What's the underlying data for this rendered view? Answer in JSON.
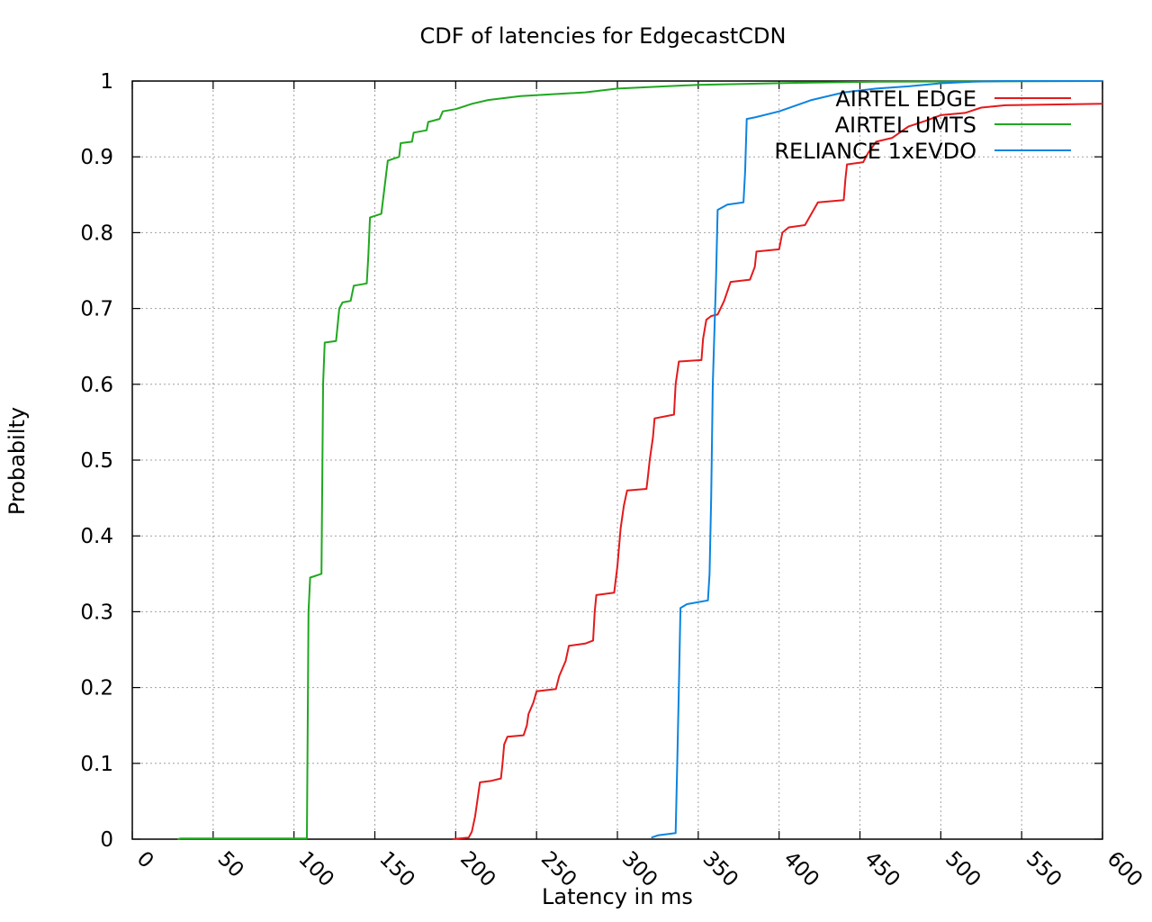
{
  "chart_data": {
    "type": "line",
    "title": "CDF of latencies for EdgecastCDN",
    "xlabel": "Latency in ms",
    "ylabel": "Probabilty",
    "xlim": [
      0,
      600
    ],
    "ylim": [
      0,
      1
    ],
    "xticks": [
      0,
      50,
      100,
      150,
      200,
      250,
      300,
      350,
      400,
      450,
      500,
      550,
      600
    ],
    "yticks": [
      0,
      0.1,
      0.2,
      0.3,
      0.4,
      0.5,
      0.6,
      0.7,
      0.8,
      0.9,
      1
    ],
    "xtick_labels": [
      "0",
      "50",
      "100",
      "150",
      "200",
      "250",
      "300",
      "350",
      "400",
      "450",
      "500",
      "550",
      "600"
    ],
    "ytick_labels": [
      "0",
      "0.1",
      "0.2",
      "0.3",
      "0.4",
      "0.5",
      "0.6",
      "0.7",
      "0.8",
      "0.9",
      "1"
    ],
    "grid": true,
    "legend_position": "top-right",
    "series": [
      {
        "name": "AIRTEL EDGE",
        "color": "#e31a1c",
        "points": [
          [
            198,
            0
          ],
          [
            208,
            0.002
          ],
          [
            210,
            0.01
          ],
          [
            211,
            0.02
          ],
          [
            212,
            0.03
          ],
          [
            214,
            0.06
          ],
          [
            215,
            0.075
          ],
          [
            222,
            0.077
          ],
          [
            228,
            0.08
          ],
          [
            229,
            0.1
          ],
          [
            230,
            0.125
          ],
          [
            232,
            0.135
          ],
          [
            242,
            0.137
          ],
          [
            244,
            0.15
          ],
          [
            245,
            0.165
          ],
          [
            248,
            0.18
          ],
          [
            250,
            0.195
          ],
          [
            262,
            0.198
          ],
          [
            264,
            0.215
          ],
          [
            268,
            0.235
          ],
          [
            270,
            0.255
          ],
          [
            280,
            0.258
          ],
          [
            285,
            0.262
          ],
          [
            286,
            0.3
          ],
          [
            287,
            0.322
          ],
          [
            298,
            0.325
          ],
          [
            300,
            0.36
          ],
          [
            302,
            0.41
          ],
          [
            304,
            0.44
          ],
          [
            306,
            0.46
          ],
          [
            318,
            0.462
          ],
          [
            319,
            0.48
          ],
          [
            320,
            0.5
          ],
          [
            322,
            0.53
          ],
          [
            323,
            0.555
          ],
          [
            335,
            0.56
          ],
          [
            336,
            0.6
          ],
          [
            338,
            0.63
          ],
          [
            352,
            0.632
          ],
          [
            353,
            0.66
          ],
          [
            355,
            0.685
          ],
          [
            358,
            0.69
          ],
          [
            362,
            0.692
          ],
          [
            366,
            0.71
          ],
          [
            370,
            0.735
          ],
          [
            382,
            0.738
          ],
          [
            385,
            0.755
          ],
          [
            386,
            0.775
          ],
          [
            400,
            0.778
          ],
          [
            402,
            0.8
          ],
          [
            406,
            0.807
          ],
          [
            416,
            0.81
          ],
          [
            420,
            0.825
          ],
          [
            424,
            0.84
          ],
          [
            440,
            0.843
          ],
          [
            441,
            0.87
          ],
          [
            442,
            0.89
          ],
          [
            452,
            0.893
          ],
          [
            455,
            0.905
          ],
          [
            460,
            0.92
          ],
          [
            470,
            0.925
          ],
          [
            480,
            0.94
          ],
          [
            490,
            0.947
          ],
          [
            500,
            0.955
          ],
          [
            515,
            0.958
          ],
          [
            525,
            0.965
          ],
          [
            540,
            0.968
          ],
          [
            600,
            0.97
          ]
        ]
      },
      {
        "name": "AIRTEL UMTS",
        "color": "#1fa81f",
        "points": [
          [
            28,
            0
          ],
          [
            30,
            0.001
          ],
          [
            100,
            0.001
          ],
          [
            108,
            0.001
          ],
          [
            109,
            0.3
          ],
          [
            110,
            0.345
          ],
          [
            117,
            0.35
          ],
          [
            118,
            0.6
          ],
          [
            119,
            0.655
          ],
          [
            126,
            0.657
          ],
          [
            128,
            0.7
          ],
          [
            130,
            0.708
          ],
          [
            135,
            0.71
          ],
          [
            137,
            0.73
          ],
          [
            145,
            0.733
          ],
          [
            146,
            0.77
          ],
          [
            147,
            0.82
          ],
          [
            154,
            0.825
          ],
          [
            156,
            0.86
          ],
          [
            158,
            0.895
          ],
          [
            165,
            0.9
          ],
          [
            166,
            0.918
          ],
          [
            173,
            0.92
          ],
          [
            174,
            0.932
          ],
          [
            182,
            0.935
          ],
          [
            183,
            0.946
          ],
          [
            190,
            0.95
          ],
          [
            192,
            0.96
          ],
          [
            200,
            0.963
          ],
          [
            210,
            0.97
          ],
          [
            220,
            0.975
          ],
          [
            240,
            0.98
          ],
          [
            280,
            0.985
          ],
          [
            300,
            0.99
          ],
          [
            350,
            0.995
          ],
          [
            420,
            0.998
          ],
          [
            460,
            0.999
          ],
          [
            600,
            1.0
          ]
        ]
      },
      {
        "name": "RELIANCE 1xEVDO",
        "color": "#0b84e0",
        "points": [
          [
            321,
            0.002
          ],
          [
            325,
            0.005
          ],
          [
            336,
            0.008
          ],
          [
            337,
            0.1
          ],
          [
            338,
            0.2
          ],
          [
            339,
            0.305
          ],
          [
            343,
            0.31
          ],
          [
            356,
            0.315
          ],
          [
            357,
            0.35
          ],
          [
            358,
            0.45
          ],
          [
            359,
            0.6
          ],
          [
            361,
            0.74
          ],
          [
            362,
            0.83
          ],
          [
            368,
            0.837
          ],
          [
            378,
            0.84
          ],
          [
            379,
            0.88
          ],
          [
            380,
            0.95
          ],
          [
            385,
            0.952
          ],
          [
            400,
            0.96
          ],
          [
            420,
            0.975
          ],
          [
            440,
            0.985
          ],
          [
            460,
            0.99
          ],
          [
            480,
            0.993
          ],
          [
            500,
            0.997
          ],
          [
            520,
            0.999
          ],
          [
            540,
            1.0
          ],
          [
            600,
            1.0
          ]
        ]
      }
    ]
  }
}
